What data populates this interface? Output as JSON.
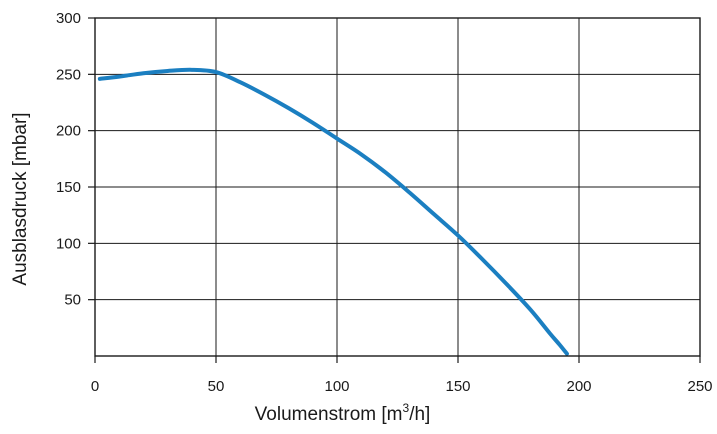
{
  "chart_data": {
    "type": "line",
    "title": "",
    "xlabel": "Volumenstrom [m³/h]",
    "xlabel_parts": {
      "before": "Volumenstrom [m",
      "superscript": "3",
      "after": "/h]"
    },
    "ylabel": "Ausblasdruck [mbar]",
    "xlim": [
      0,
      250
    ],
    "ylim": [
      0,
      300
    ],
    "x_ticks": [
      0,
      50,
      100,
      150,
      200,
      250
    ],
    "y_ticks": [
      50,
      100,
      150,
      200,
      250,
      300
    ],
    "grid": true,
    "legend": "none",
    "series": [
      {
        "color": "#1b7fc1",
        "points": [
          [
            2,
            246
          ],
          [
            10,
            248
          ],
          [
            20,
            251
          ],
          [
            30,
            253
          ],
          [
            40,
            254
          ],
          [
            50,
            252
          ],
          [
            60,
            243
          ],
          [
            70,
            232
          ],
          [
            80,
            220
          ],
          [
            90,
            207
          ],
          [
            100,
            193
          ],
          [
            110,
            179
          ],
          [
            120,
            163
          ],
          [
            130,
            145
          ],
          [
            140,
            126
          ],
          [
            150,
            107
          ],
          [
            160,
            86
          ],
          [
            170,
            64
          ],
          [
            180,
            41
          ],
          [
            188,
            20
          ],
          [
            192,
            10
          ],
          [
            195,
            2
          ]
        ]
      }
    ]
  }
}
